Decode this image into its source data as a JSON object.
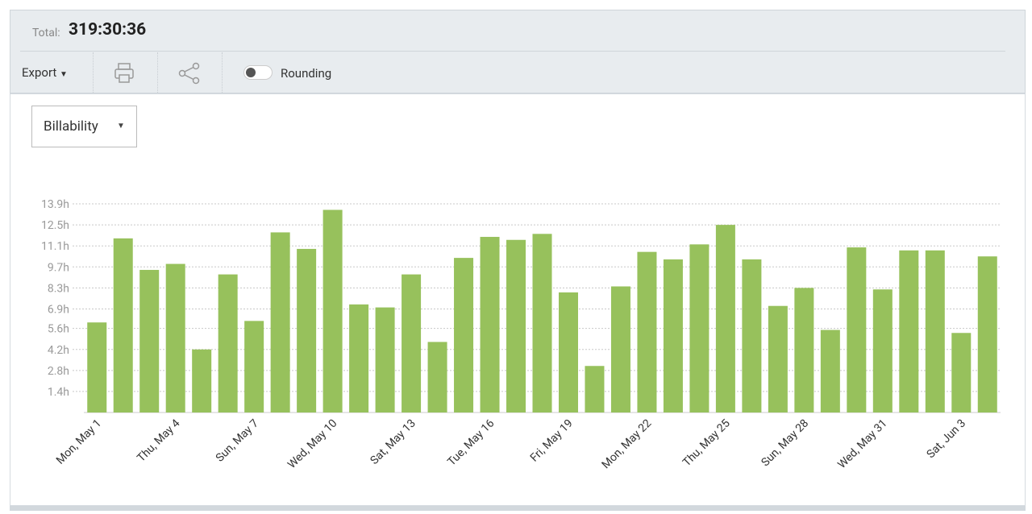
{
  "header": {
    "total_label": "Total:",
    "total": "319:30:36"
  },
  "toolbar": {
    "export": "Export",
    "rounding": "Rounding"
  },
  "dropdown": {
    "label": "Billability"
  },
  "chart_data": {
    "type": "bar",
    "color": "#97c15c",
    "grid": true,
    "categories": [
      "Mon, May 1",
      null,
      null,
      "Thu, May 4",
      null,
      null,
      "Sun, May 7",
      null,
      null,
      "Wed, May 10",
      null,
      null,
      "Sat, May 13",
      null,
      null,
      "Tue, May 16",
      null,
      null,
      "Fri, May 19",
      null,
      null,
      "Mon, May 22",
      null,
      null,
      "Thu, May 25",
      null,
      null,
      "Sun, May 28",
      null,
      null,
      "Wed, May 31",
      null,
      null,
      "Sat, Jun 3",
      null
    ],
    "values": [
      6.0,
      11.6,
      9.5,
      9.9,
      4.2,
      9.2,
      6.1,
      12.0,
      10.9,
      13.5,
      7.2,
      7.0,
      9.2,
      4.7,
      10.3,
      11.7,
      11.5,
      11.9,
      8.0,
      3.1,
      8.4,
      10.7,
      10.2,
      11.2,
      12.5,
      10.2,
      7.1,
      8.3,
      5.5,
      11.0,
      8.2,
      10.8,
      10.8,
      5.3,
      10.4
    ],
    "ylim": [
      0,
      14.6
    ],
    "yticks": [
      {
        "value": 1.4,
        "label": "1.4h"
      },
      {
        "value": 2.8,
        "label": "2.8h"
      },
      {
        "value": 4.2,
        "label": "4.2h"
      },
      {
        "value": 5.6,
        "label": "5.6h"
      },
      {
        "value": 6.9,
        "label": "6.9h"
      },
      {
        "value": 8.3,
        "label": "8.3h"
      },
      {
        "value": 9.7,
        "label": "9.7h"
      },
      {
        "value": 11.1,
        "label": "11.1h"
      },
      {
        "value": 12.5,
        "label": "12.5h"
      },
      {
        "value": 13.9,
        "label": "13.9h"
      }
    ]
  }
}
